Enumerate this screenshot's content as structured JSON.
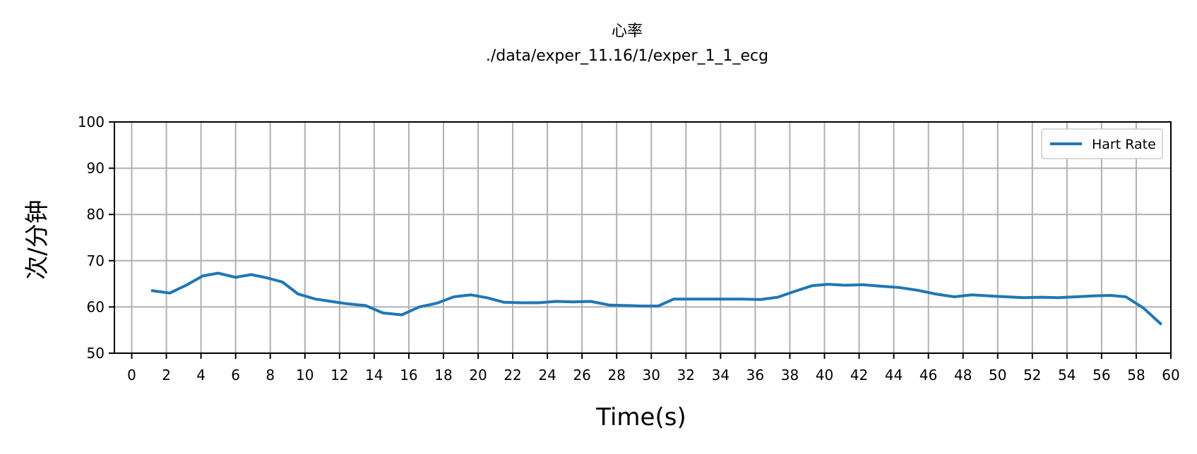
{
  "chart_data": {
    "type": "line",
    "title": "心率",
    "subtitle": "./data/exper_11.16/1/exper_1_1_ecg",
    "xlabel": "Time(s)",
    "ylabel": "次/分钟",
    "xlim": [
      -1,
      60
    ],
    "ylim": [
      50,
      100
    ],
    "xticks": [
      0,
      2,
      4,
      6,
      8,
      10,
      12,
      14,
      16,
      18,
      20,
      22,
      24,
      26,
      28,
      30,
      32,
      34,
      36,
      38,
      40,
      42,
      44,
      46,
      48,
      50,
      52,
      54,
      56,
      58,
      60
    ],
    "yticks": [
      50,
      60,
      70,
      80,
      90,
      100
    ],
    "grid": true,
    "legend_position": "top-right",
    "colors": {
      "series": "#1f77b4",
      "grid": "#b0b0b0",
      "frame": "#000000"
    },
    "series": [
      {
        "name": "Hart Rate",
        "x": [
          1.2,
          2.2,
          3.2,
          4.1,
          5.0,
          6.0,
          6.9,
          7.8,
          8.7,
          9.6,
          10.6,
          11.5,
          12.4,
          13.5,
          14.5,
          15.6,
          16.6,
          17.6,
          18.6,
          19.6,
          20.5,
          21.5,
          22.5,
          23.5,
          24.5,
          25.5,
          26.5,
          27.6,
          28.6,
          29.5,
          30.4,
          31.3,
          32.3,
          33.3,
          34.3,
          35.3,
          36.3,
          37.3,
          38.3,
          39.3,
          40.2,
          41.2,
          42.2,
          43.2,
          44.3,
          45.4,
          46.4,
          47.5,
          48.5,
          49.5,
          50.5,
          51.5,
          52.5,
          53.5,
          54.5,
          55.5,
          56.5,
          57.4,
          58.4,
          59.4
        ],
        "y": [
          63.5,
          63.0,
          64.8,
          66.7,
          67.3,
          66.4,
          67.0,
          66.3,
          65.4,
          62.8,
          61.7,
          61.2,
          60.7,
          60.3,
          58.7,
          58.3,
          60.0,
          60.8,
          62.2,
          62.6,
          62.0,
          61.0,
          60.9,
          60.9,
          61.2,
          61.1,
          61.2,
          60.4,
          60.3,
          60.2,
          60.2,
          61.7,
          61.7,
          61.7,
          61.7,
          61.7,
          61.6,
          62.1,
          63.4,
          64.6,
          64.9,
          64.7,
          64.8,
          64.5,
          64.2,
          63.6,
          62.8,
          62.2,
          62.6,
          62.4,
          62.2,
          62.0,
          62.1,
          62.0,
          62.2,
          62.4,
          62.5,
          62.2,
          59.8,
          56.4
        ]
      }
    ]
  }
}
